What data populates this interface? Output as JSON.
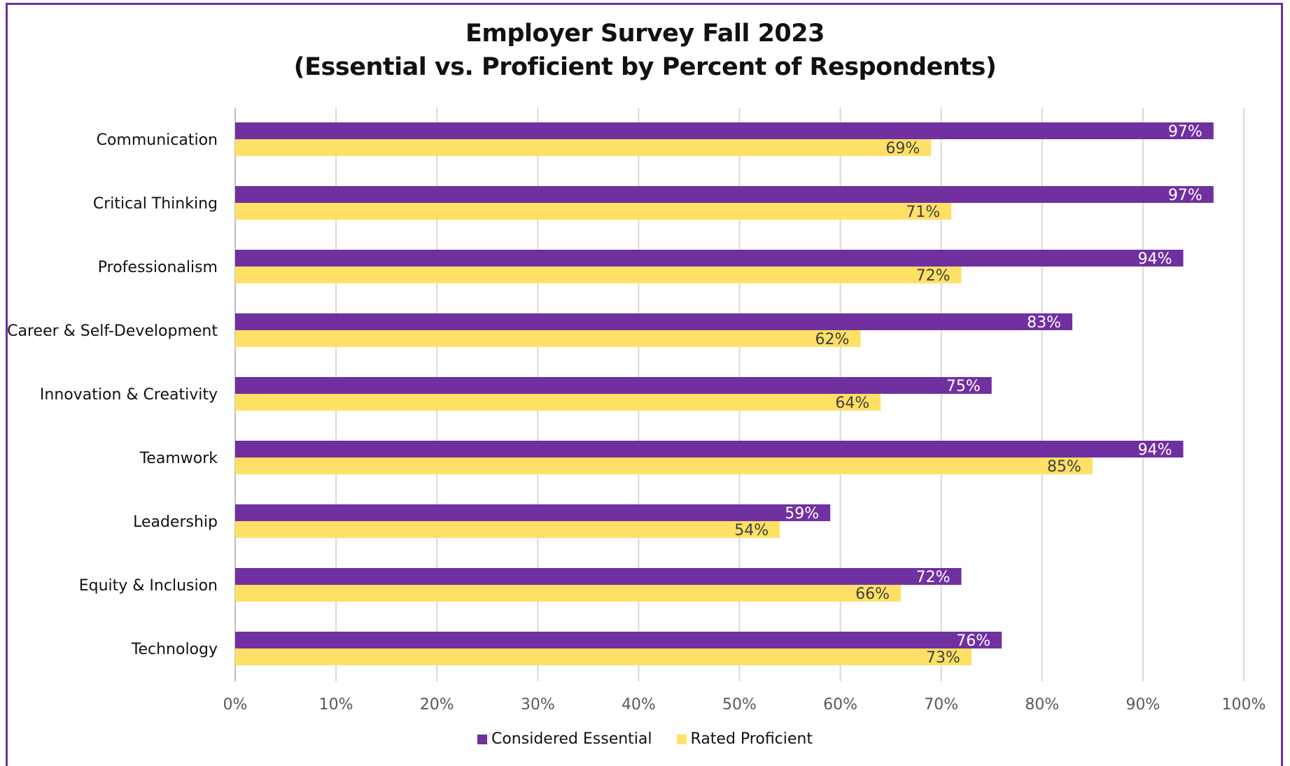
{
  "chart_data": {
    "type": "bar",
    "orientation": "horizontal",
    "title_line1": "Employer Survey Fall 2023",
    "title_line2": "(Essential vs. Proficient by Percent of Respondents)",
    "categories": [
      "Communication",
      "Critical Thinking",
      "Professionalism",
      "Career & Self-Development",
      "Innovation & Creativity",
      "Teamwork",
      "Leadership",
      "Equity & Inclusion",
      "Technology"
    ],
    "series": [
      {
        "name": "Considered Essential",
        "color": "#7030a0",
        "label_color": "#ffffff",
        "values": [
          97,
          97,
          94,
          83,
          75,
          94,
          59,
          72,
          76
        ],
        "labels": [
          "97%",
          "97%",
          "94%",
          "83%",
          "75%",
          "94%",
          "59%",
          "72%",
          "76%"
        ]
      },
      {
        "name": "Rated Proficient",
        "color": "#ffe066",
        "label_color": "#404040",
        "values": [
          69,
          71,
          72,
          62,
          64,
          85,
          54,
          66,
          73
        ],
        "labels": [
          "69%",
          "71%",
          "72%",
          "62%",
          "64%",
          "85%",
          "54%",
          "66%",
          "73%"
        ]
      }
    ],
    "xlim": [
      0,
      100
    ],
    "x_ticks": [
      "0%",
      "10%",
      "20%",
      "30%",
      "40%",
      "50%",
      "60%",
      "70%",
      "80%",
      "90%",
      "100%"
    ],
    "grid": true,
    "legend_position": "bottom"
  }
}
